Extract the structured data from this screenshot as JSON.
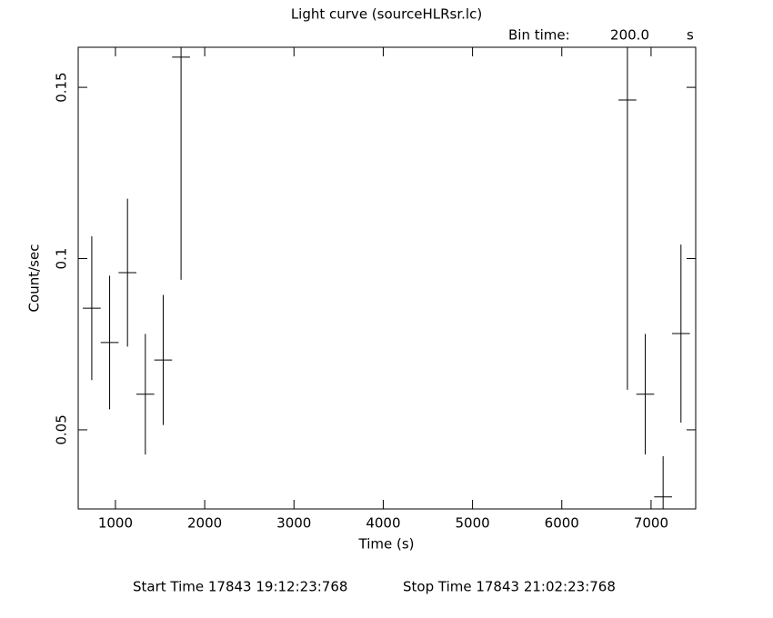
{
  "chart_data": {
    "type": "errorbar",
    "title": "Light curve (sourceHLRsr.lc)",
    "bin_time_label": "Bin time:",
    "bin_time": "200.0",
    "bin_time_unit": "s",
    "x_label": "Time (s)",
    "y_label": "Count/sec",
    "start_time": "Start Time 17843 19:12:23:768",
    "stop_time": "Stop Time 17843 21:02:23:768",
    "x": [
      735,
      935,
      1135,
      1335,
      1535,
      1735,
      6735,
      6935,
      7135,
      7335
    ],
    "values": [
      0.0855,
      0.0755,
      0.0959,
      0.0604,
      0.0704,
      0.1588,
      0.1463,
      0.0604,
      0.0304,
      0.0781
    ],
    "errors": [
      0.021,
      0.0195,
      0.0216,
      0.0176,
      0.019,
      0.065,
      0.0846,
      0.0176,
      0.0119,
      0.026
    ],
    "color": "#000000",
    "xlim": [
      583,
      7500
    ],
    "ylim": [
      0.0269,
      0.1617
    ],
    "xticks": [
      1000,
      2000,
      3000,
      4000,
      5000,
      6000,
      7000
    ],
    "yticks": [
      0.05,
      0.1,
      0.15
    ]
  }
}
